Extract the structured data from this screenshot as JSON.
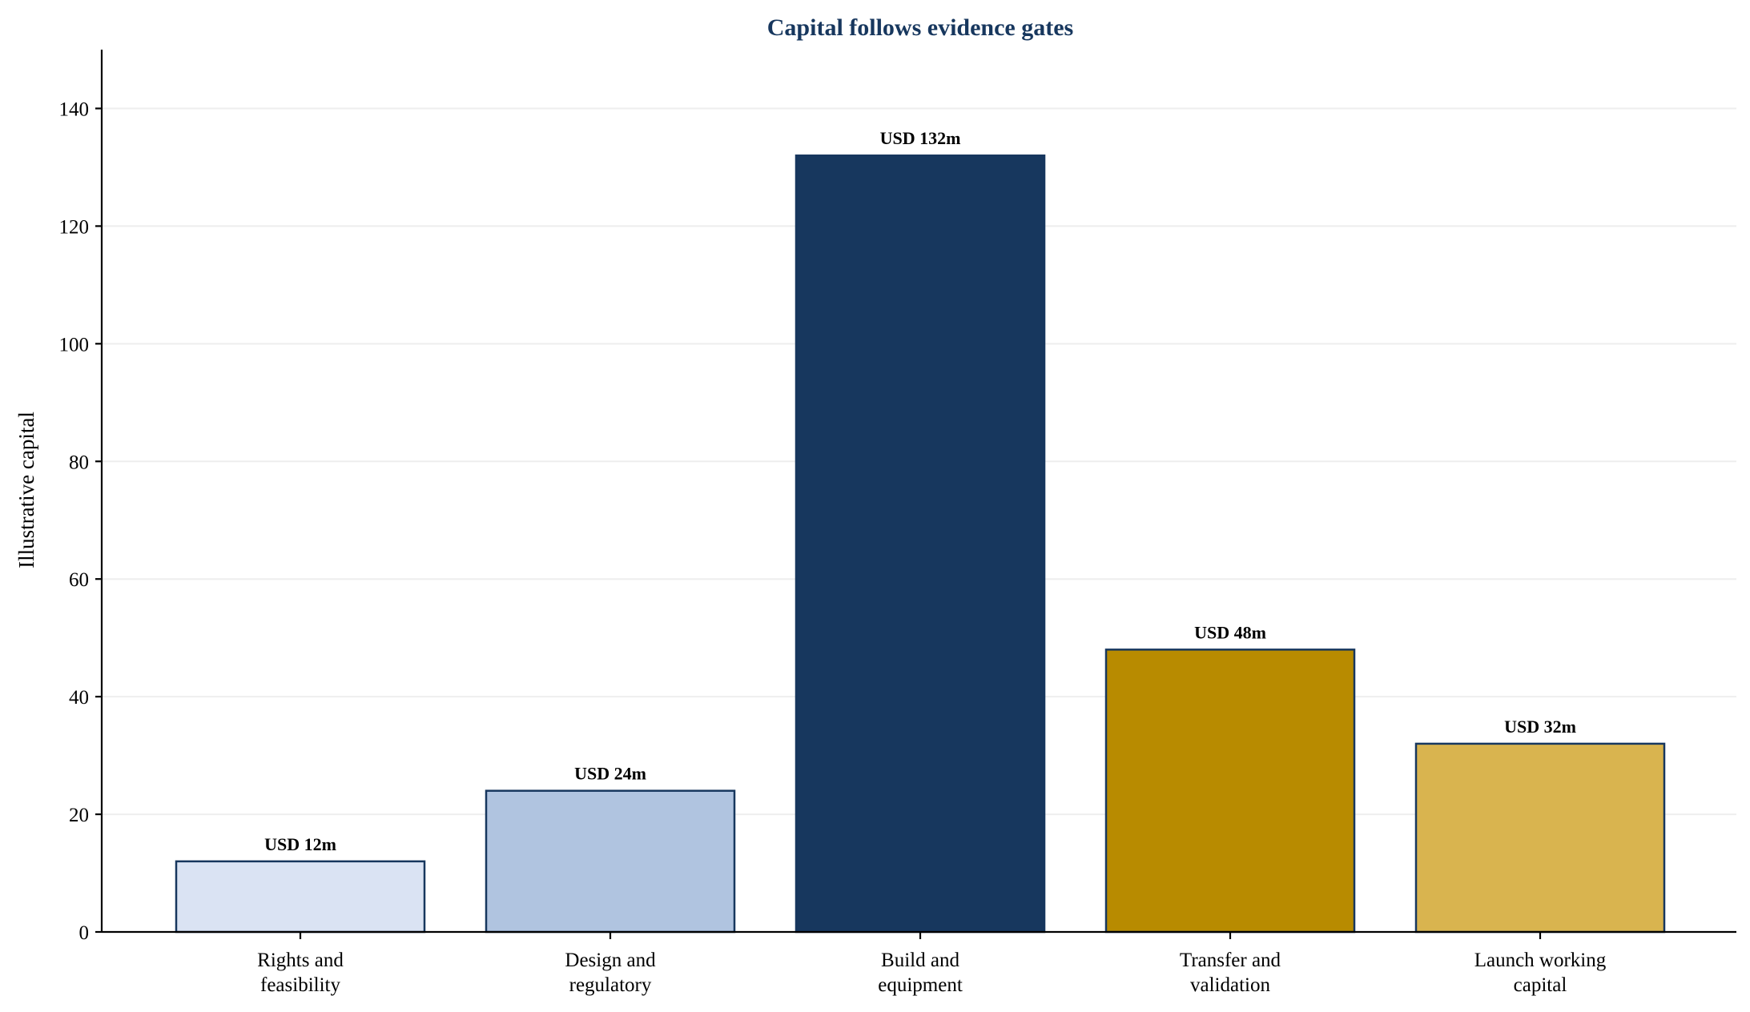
{
  "chart_data": {
    "type": "bar",
    "title": "Capital follows evidence gates",
    "xlabel": "",
    "ylabel": "Illustrative capital",
    "ylim": [
      0,
      150
    ],
    "yticks": [
      0,
      20,
      40,
      60,
      80,
      100,
      120,
      140
    ],
    "grid": true,
    "categories": [
      [
        "Rights and",
        "feasibility"
      ],
      [
        "Design and",
        "regulatory"
      ],
      [
        "Build and",
        "equipment"
      ],
      [
        "Transfer and",
        "validation"
      ],
      [
        "Launch working",
        "capital"
      ]
    ],
    "values": [
      12,
      24,
      132,
      48,
      32
    ],
    "data_labels": [
      "USD 12m",
      "USD 24m",
      "USD 132m",
      "USD 48m",
      "USD 32m"
    ],
    "colors": [
      "#dae3f3",
      "#b0c4e0",
      "#17375e",
      "#b88b00",
      "#d9b44f"
    ],
    "edge_color": "#17375e",
    "title_color": "#17375e"
  }
}
